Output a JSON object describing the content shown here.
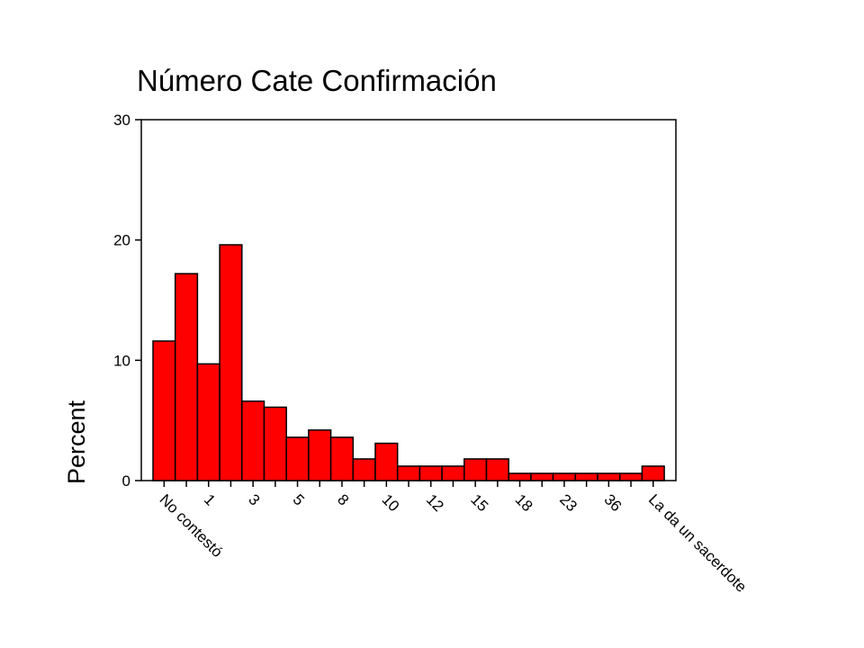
{
  "chart_data": {
    "type": "bar",
    "title": "Número Cate Confirmación",
    "xlabel": "",
    "ylabel": "Percent",
    "ylim": [
      0,
      30
    ],
    "yticks": [
      0,
      10,
      20,
      30
    ],
    "grid": false,
    "bar_color": "#ff0000",
    "categories": [
      "No contestó",
      "",
      "1",
      "",
      "3",
      "",
      "5",
      "",
      "8",
      "",
      "10",
      "",
      "12",
      "",
      "15",
      "",
      "18",
      "",
      "23",
      "",
      "36",
      "",
      "La da un sacerdote"
    ],
    "values": [
      11.6,
      17.2,
      9.7,
      19.6,
      6.6,
      6.1,
      3.6,
      4.2,
      3.6,
      1.8,
      3.1,
      1.2,
      1.2,
      1.2,
      1.8,
      1.8,
      0.6,
      0.6,
      0.6,
      0.6,
      0.6,
      0.6,
      1.2
    ]
  }
}
